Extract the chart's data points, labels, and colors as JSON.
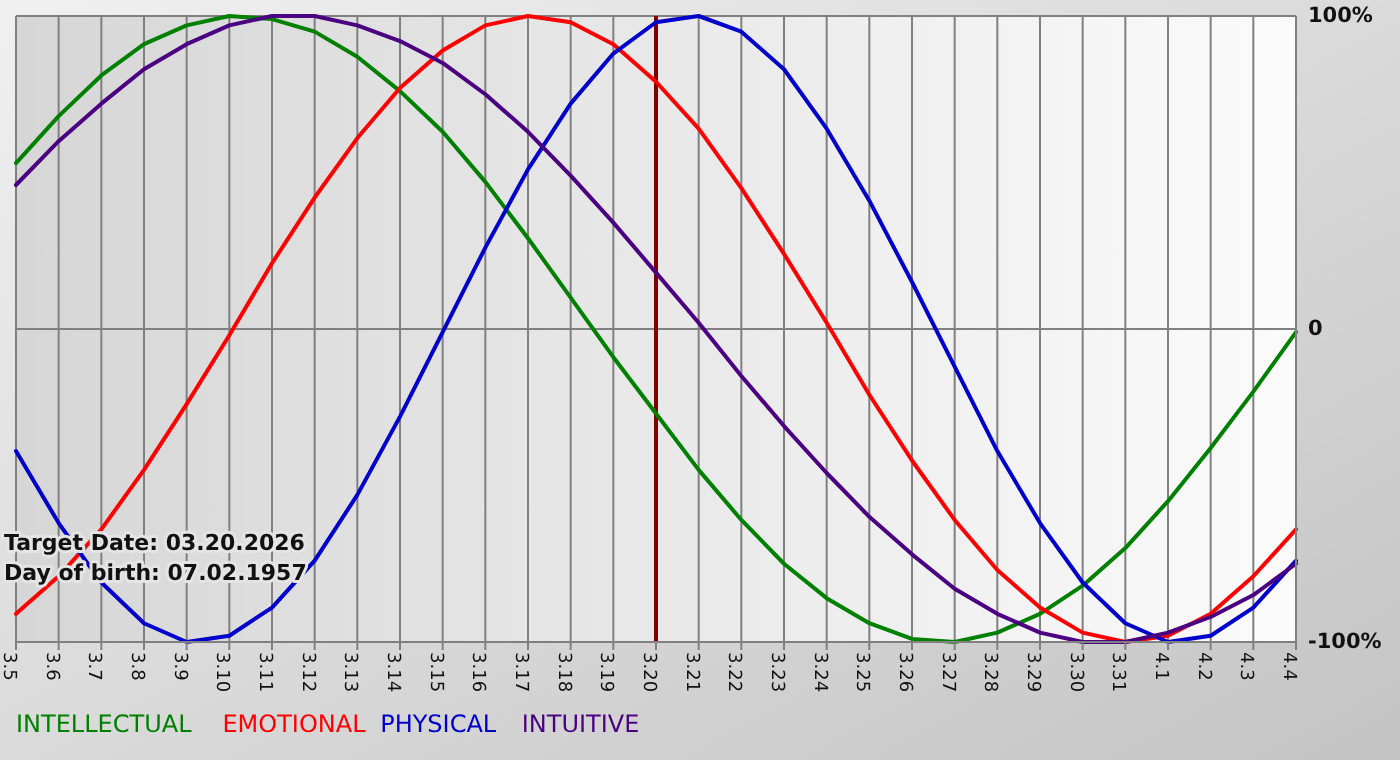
{
  "chart_data": {
    "type": "line",
    "categories": [
      "3.5",
      "3.6",
      "3.7",
      "3.8",
      "3.9",
      "3.10",
      "3.11",
      "3.12",
      "3.13",
      "3.14",
      "3.15",
      "3.16",
      "3.17",
      "3.18",
      "3.19",
      "3.20",
      "3.21",
      "3.22",
      "3.23",
      "3.24",
      "3.25",
      "3.26",
      "3.27",
      "3.28",
      "3.29",
      "3.30",
      "3.31",
      "4.1",
      "4.2",
      "4.3",
      "4.4"
    ],
    "series": [
      {
        "name": "INTELLECTUAL",
        "color": "#008000",
        "values": [
          53,
          68,
          81,
          91,
          97,
          100,
          99,
          95,
          87,
          76,
          63,
          47,
          29,
          10,
          -9,
          -27,
          -45,
          -61,
          -75,
          -86,
          -94,
          -99,
          -100,
          -97,
          -91,
          -82,
          -70,
          -55,
          -38,
          -20,
          -1
        ]
      },
      {
        "name": "EMOTIONAL",
        "color": "#ff0000",
        "values": [
          -91,
          -79,
          -64,
          -45,
          -24,
          -2,
          21,
          42,
          61,
          77,
          89,
          97,
          100,
          98,
          91,
          79,
          64,
          45,
          24,
          2,
          -21,
          -42,
          -61,
          -77,
          -89,
          -97,
          -100,
          -98,
          -91,
          -79,
          -64
        ]
      },
      {
        "name": "PHYSICAL",
        "color": "#0000cc",
        "values": [
          -39,
          -62,
          -81,
          -94,
          -100,
          -98,
          -89,
          -74,
          -53,
          -28,
          -1,
          26,
          51,
          72,
          88,
          98,
          100,
          95,
          83,
          64,
          41,
          15,
          -12,
          -39,
          -62,
          -81,
          -94,
          -100,
          -98,
          -89,
          -74
        ]
      },
      {
        "name": "INTUITIVE",
        "color": "#4b0082",
        "values": [
          46,
          60,
          72,
          83,
          91,
          97,
          100,
          100,
          97,
          92,
          85,
          75,
          63,
          49,
          34,
          18,
          2,
          -15,
          -31,
          -46,
          -60,
          -72,
          -83,
          -91,
          -97,
          -100,
          -100,
          -97,
          -92,
          -85,
          -75
        ]
      }
    ],
    "ylim": [
      -100,
      100
    ],
    "yticks": [
      {
        "value": 100,
        "label": "100%"
      },
      0,
      {
        "value": -100,
        "label": "-100%"
      }
    ],
    "grid": true,
    "legend": "bottom",
    "ref_lines": [
      {
        "axis": "x",
        "value": "3.20",
        "color": "#800000"
      }
    ],
    "annotations": [
      "Target Date: 03.20.2026",
      "Day of birth: 07.02.1957"
    ]
  }
}
